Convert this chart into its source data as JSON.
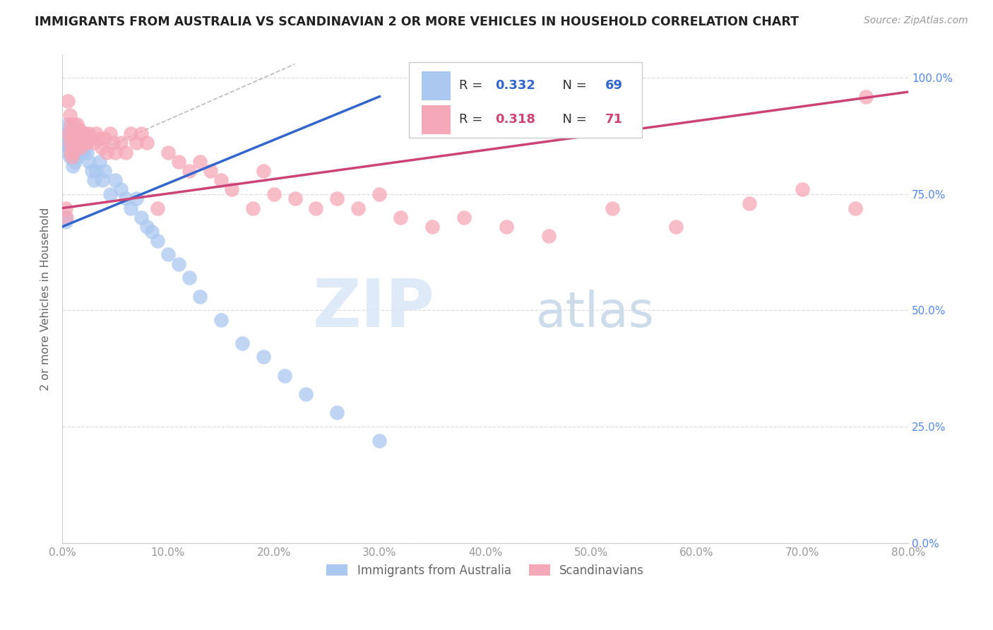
{
  "title": "IMMIGRANTS FROM AUSTRALIA VS SCANDINAVIAN 2 OR MORE VEHICLES IN HOUSEHOLD CORRELATION CHART",
  "source": "Source: ZipAtlas.com",
  "ylabel": "2 or more Vehicles in Household",
  "x_tick_labels": [
    "0.0%",
    "10.0%",
    "20.0%",
    "30.0%",
    "40.0%",
    "50.0%",
    "60.0%",
    "70.0%",
    "80.0%"
  ],
  "y_tick_labels_right": [
    "0.0%",
    "25.0%",
    "50.0%",
    "75.0%",
    "100.0%"
  ],
  "x_ticks": [
    0,
    10,
    20,
    30,
    40,
    50,
    60,
    70,
    80
  ],
  "y_ticks": [
    0,
    25,
    50,
    75,
    100
  ],
  "x_range": [
    0,
    80
  ],
  "y_range": [
    0,
    105
  ],
  "australia_R": 0.332,
  "australia_N": 69,
  "scandinavian_R": 0.318,
  "scandinavian_N": 71,
  "australia_color": "#aac8f0",
  "scandinavian_color": "#f5a8b8",
  "australia_line_color": "#3366cc",
  "scandinavian_line_color": "#cc4477",
  "legend_label_australia": "Immigrants from Australia",
  "legend_label_scandinavian": "Scandinavians",
  "watermark_zip": "ZIP",
  "watermark_atlas": "atlas",
  "aus_x": [
    0.3,
    0.3,
    0.4,
    0.5,
    0.5,
    0.5,
    0.6,
    0.6,
    0.6,
    0.7,
    0.7,
    0.7,
    0.8,
    0.8,
    0.8,
    0.9,
    0.9,
    0.9,
    1.0,
    1.0,
    1.0,
    1.0,
    1.1,
    1.1,
    1.2,
    1.2,
    1.2,
    1.3,
    1.3,
    1.4,
    1.4,
    1.5,
    1.5,
    1.6,
    1.7,
    1.8,
    1.9,
    2.0,
    2.1,
    2.2,
    2.3,
    2.5,
    2.8,
    3.0,
    3.2,
    3.5,
    3.8,
    4.0,
    4.5,
    5.0,
    5.5,
    6.0,
    6.5,
    7.0,
    7.5,
    8.0,
    8.5,
    9.0,
    10.0,
    11.0,
    12.0,
    13.0,
    15.0,
    17.0,
    19.0,
    21.0,
    23.0,
    26.0,
    30.0
  ],
  "aus_y": [
    69,
    70,
    88,
    87,
    85,
    90,
    88,
    86,
    84,
    87,
    85,
    83,
    88,
    86,
    84,
    87,
    85,
    83,
    88,
    86,
    84,
    81,
    87,
    85,
    88,
    86,
    82,
    87,
    84,
    86,
    83,
    87,
    84,
    86,
    85,
    87,
    86,
    84,
    85,
    86,
    84,
    82,
    80,
    78,
    80,
    82,
    78,
    80,
    75,
    78,
    76,
    74,
    72,
    74,
    70,
    68,
    67,
    65,
    62,
    60,
    57,
    53,
    48,
    43,
    40,
    36,
    32,
    28,
    22
  ],
  "sca_x": [
    0.3,
    0.4,
    0.5,
    0.6,
    0.7,
    0.7,
    0.8,
    0.8,
    0.9,
    0.9,
    1.0,
    1.0,
    1.1,
    1.1,
    1.2,
    1.2,
    1.3,
    1.4,
    1.5,
    1.6,
    1.7,
    1.8,
    1.9,
    2.0,
    2.1,
    2.2,
    2.3,
    2.5,
    2.7,
    3.0,
    3.2,
    3.5,
    3.7,
    4.0,
    4.2,
    4.5,
    4.8,
    5.0,
    5.5,
    6.0,
    6.5,
    7.0,
    7.5,
    8.0,
    9.0,
    10.0,
    11.0,
    12.0,
    13.0,
    14.0,
    15.0,
    16.0,
    18.0,
    19.0,
    20.0,
    22.0,
    24.0,
    26.0,
    28.0,
    30.0,
    32.0,
    35.0,
    38.0,
    42.0,
    46.0,
    52.0,
    58.0,
    65.0,
    70.0,
    75.0,
    76.0
  ],
  "sca_y": [
    72,
    70,
    95,
    88,
    86,
    92,
    84,
    90,
    87,
    83,
    88,
    84,
    90,
    86,
    87,
    85,
    88,
    90,
    87,
    89,
    85,
    88,
    86,
    88,
    86,
    88,
    86,
    88,
    87,
    86,
    88,
    87,
    85,
    87,
    84,
    88,
    86,
    84,
    86,
    84,
    88,
    86,
    88,
    86,
    72,
    84,
    82,
    80,
    82,
    80,
    78,
    76,
    72,
    80,
    75,
    74,
    72,
    74,
    72,
    75,
    70,
    68,
    70,
    68,
    66,
    72,
    68,
    73,
    76,
    72,
    96
  ]
}
